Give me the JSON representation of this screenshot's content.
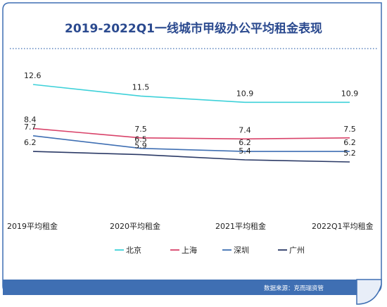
{
  "chart_data": {
    "type": "line",
    "title": "2019-2022Q1一线城市甲级办公平均租金表现",
    "categories": [
      "2019平均租金",
      "2020平均租金",
      "2021平均租金",
      "2022Q1平均租金"
    ],
    "series": [
      {
        "name": "北京",
        "color": "#3ed1d9",
        "values": [
          12.6,
          11.5,
          10.9,
          10.9
        ]
      },
      {
        "name": "上海",
        "color": "#d9436a",
        "values": [
          8.4,
          7.5,
          7.4,
          7.5
        ]
      },
      {
        "name": "深圳",
        "color": "#3f6fb3",
        "values": [
          7.7,
          6.5,
          6.2,
          6.2
        ]
      },
      {
        "name": "广州",
        "color": "#2b3a66",
        "values": [
          6.2,
          5.9,
          5.4,
          5.2
        ]
      }
    ],
    "legend_position": "bottom",
    "grid": false
  },
  "colors": {
    "title": "#2b4a8f",
    "frame": "#3f6fb3",
    "footer_bar": "#3f6fb3"
  },
  "footer": {
    "source": "数据来源：克而瑞资管"
  }
}
